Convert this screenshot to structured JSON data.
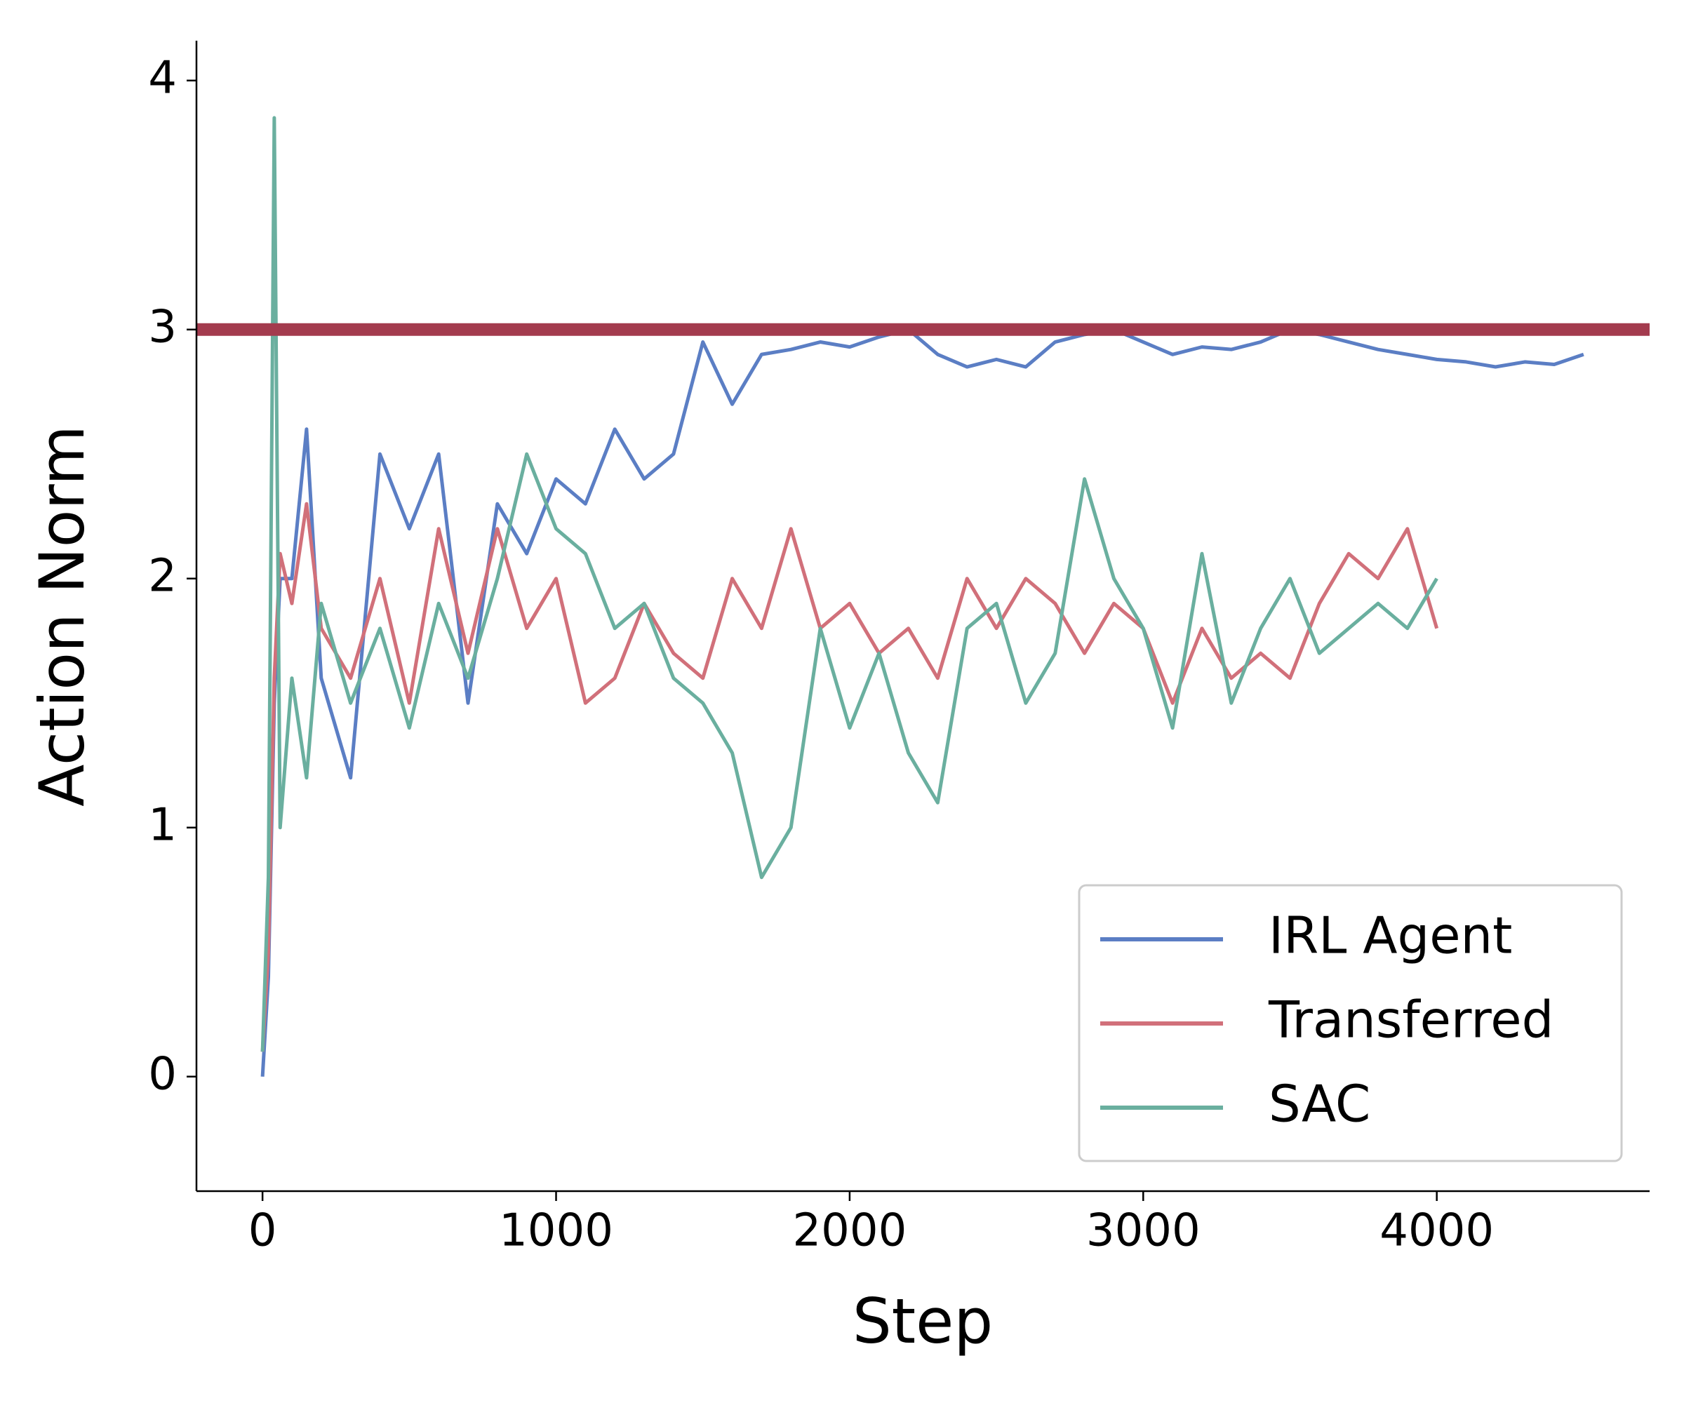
{
  "chart_data": {
    "type": "line",
    "xlabel": "Step",
    "ylabel": "Action Norm",
    "x": [
      0,
      20,
      40,
      60,
      100,
      150,
      200,
      300,
      400,
      500,
      600,
      700,
      800,
      900,
      1000,
      1100,
      1200,
      1300,
      1400,
      1500,
      1600,
      1700,
      1800,
      1900,
      2000,
      2100,
      2200,
      2300,
      2400,
      2500,
      2600,
      2700,
      2800,
      2900,
      3000,
      3100,
      3200,
      3300,
      3400,
      3500,
      3600,
      3700,
      3800,
      3900,
      4000,
      4100,
      4200,
      4300,
      4400,
      4500
    ],
    "series": [
      {
        "name": "IRL Agent",
        "color": "#5b7ec4",
        "values": [
          0,
          0.4,
          1.5,
          2.0,
          2.0,
          2.6,
          1.6,
          1.2,
          2.5,
          2.2,
          2.5,
          1.5,
          2.3,
          2.1,
          2.4,
          2.3,
          2.6,
          2.4,
          2.5,
          2.95,
          2.7,
          2.9,
          2.92,
          2.95,
          2.93,
          2.97,
          3.0,
          2.9,
          2.85,
          2.88,
          2.85,
          2.95,
          2.98,
          3.0,
          2.95,
          2.9,
          2.93,
          2.92,
          2.95,
          3.0,
          2.98,
          2.95,
          2.92,
          2.9,
          2.88,
          2.87,
          2.85,
          2.87,
          2.86,
          2.9
        ]
      },
      {
        "name": "Transferred",
        "color": "#d1707a",
        "values": [
          0.1,
          0.5,
          1.6,
          2.1,
          1.9,
          2.3,
          1.8,
          1.6,
          2.0,
          1.5,
          2.2,
          1.7,
          2.2,
          1.8,
          2.0,
          1.5,
          1.6,
          1.9,
          1.7,
          1.6,
          2.0,
          1.8,
          2.2,
          1.8,
          1.9,
          1.7,
          1.8,
          1.6,
          2.0,
          1.8,
          2.0,
          1.9,
          1.7,
          1.9,
          1.8,
          1.5,
          1.8,
          1.6,
          1.7,
          1.6,
          1.9,
          2.1,
          2.0,
          2.2,
          1.8,
          null,
          null,
          null,
          null,
          null
        ]
      },
      {
        "name": "SAC",
        "color": "#6aaf9f",
        "values": [
          0.1,
          0.8,
          3.85,
          1.0,
          1.6,
          1.2,
          1.9,
          1.5,
          1.8,
          1.4,
          1.9,
          1.6,
          2.0,
          2.5,
          2.2,
          2.1,
          1.8,
          1.9,
          1.6,
          1.5,
          1.3,
          0.8,
          1.0,
          1.8,
          1.4,
          1.7,
          1.3,
          1.1,
          1.8,
          1.9,
          1.5,
          1.7,
          2.4,
          2.0,
          1.8,
          1.4,
          2.1,
          1.5,
          1.8,
          2.0,
          1.7,
          1.8,
          1.9,
          1.8,
          2.0,
          null,
          null,
          null,
          null,
          null
        ]
      }
    ],
    "reference_lines": [
      {
        "y": 3,
        "color": "#a33b4e"
      }
    ],
    "xlim": [
      -225,
      4725
    ],
    "xticks": [
      0,
      1000,
      2000,
      3000,
      4000
    ],
    "ylim": [
      -0.46,
      4.16
    ],
    "yticks": [
      0,
      1,
      2,
      3,
      4
    ],
    "grid": false,
    "legend": "lower right"
  }
}
